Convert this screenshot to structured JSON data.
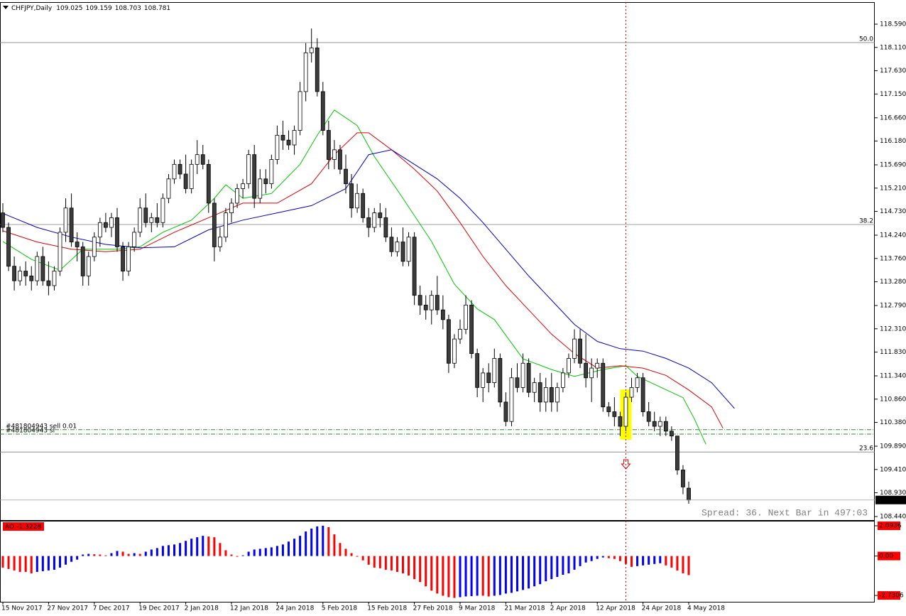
{
  "chart_data": {
    "type": "candlestick",
    "symbol": "CHFJPY,Daily",
    "categories": [
      "15 Nov 2017",
      null,
      null,
      null,
      null,
      null,
      null,
      null,
      "27 Nov 2017",
      null,
      null,
      null,
      null,
      null,
      null,
      null,
      "7 Dec 2017",
      null,
      null,
      null,
      null,
      null,
      null,
      null,
      "19 Dec 2017",
      null,
      null,
      null,
      null,
      null,
      null,
      null,
      "2 Jan 2018",
      null,
      null,
      null,
      null,
      null,
      null,
      null,
      "12 Jan 2018",
      null,
      null,
      null,
      null,
      null,
      null,
      null,
      "24 Jan 2018",
      null,
      null,
      null,
      null,
      null,
      null,
      null,
      "5 Feb 2018",
      null,
      null,
      null,
      null,
      null,
      null,
      null,
      "15 Feb 2018",
      null,
      null,
      null,
      null,
      null,
      null,
      null,
      "27 Feb 2018",
      null,
      null,
      null,
      null,
      null,
      null,
      null,
      "9 Mar 2018",
      null,
      null,
      null,
      null,
      null,
      null,
      null,
      "21 Mar 2018",
      null,
      null,
      null,
      null,
      null,
      null,
      null,
      "2 Apr 2018",
      null,
      null,
      null,
      null,
      null,
      null,
      null,
      "12 Apr 2018",
      null,
      null,
      null,
      null,
      null,
      null,
      null,
      "24 Apr 2018",
      null,
      null,
      null,
      null,
      null,
      null,
      null,
      "4 May 2018"
    ],
    "candles": [
      [
        114.7,
        114.9,
        114.3,
        114.4
      ],
      [
        114.4,
        114.5,
        113.5,
        113.6
      ],
      [
        113.6,
        113.8,
        113.1,
        113.3
      ],
      [
        113.3,
        113.6,
        113.2,
        113.5
      ],
      [
        113.5,
        113.7,
        113.2,
        113.4
      ],
      [
        113.4,
        113.6,
        113.1,
        113.3
      ],
      [
        113.3,
        113.9,
        113.2,
        113.8
      ],
      [
        113.8,
        114.0,
        113.2,
        113.3
      ],
      [
        113.3,
        113.7,
        113.0,
        113.2
      ],
      [
        113.2,
        113.6,
        113.1,
        113.5
      ],
      [
        113.5,
        114.4,
        113.4,
        114.3
      ],
      [
        114.3,
        115.0,
        114.1,
        114.8
      ],
      [
        114.8,
        115.1,
        114.0,
        114.1
      ],
      [
        114.1,
        114.3,
        113.7,
        114.0
      ],
      [
        114.0,
        114.1,
        113.2,
        113.4
      ],
      [
        113.4,
        113.9,
        113.2,
        113.8
      ],
      [
        113.8,
        114.3,
        113.7,
        114.2
      ],
      [
        114.2,
        114.6,
        114.0,
        114.5
      ],
      [
        114.5,
        114.7,
        114.3,
        114.4
      ],
      [
        114.4,
        114.7,
        114.2,
        114.6
      ],
      [
        114.6,
        114.8,
        113.9,
        114.0
      ],
      [
        114.0,
        114.1,
        113.3,
        113.5
      ],
      [
        113.5,
        114.1,
        113.4,
        114.0
      ],
      [
        114.0,
        114.4,
        113.9,
        114.3
      ],
      [
        114.3,
        115.0,
        114.2,
        114.8
      ],
      [
        114.8,
        115.1,
        114.4,
        114.5
      ],
      [
        114.5,
        114.7,
        114.3,
        114.6
      ],
      [
        114.6,
        114.9,
        114.4,
        114.5
      ],
      [
        114.5,
        115.1,
        114.4,
        115.0
      ],
      [
        115.0,
        115.5,
        114.9,
        115.4
      ],
      [
        115.4,
        115.8,
        115.3,
        115.7
      ],
      [
        115.7,
        115.8,
        115.4,
        115.5
      ],
      [
        115.5,
        115.9,
        115.1,
        115.2
      ],
      [
        115.2,
        115.8,
        115.1,
        115.7
      ],
      [
        115.7,
        116.2,
        115.5,
        115.9
      ],
      [
        115.9,
        116.1,
        115.6,
        115.7
      ],
      [
        115.7,
        115.8,
        114.7,
        114.9
      ],
      [
        114.9,
        115.0,
        113.7,
        114.0
      ],
      [
        114.0,
        114.4,
        113.9,
        114.2
      ],
      [
        114.2,
        114.8,
        114.1,
        114.7
      ],
      [
        114.7,
        115.0,
        114.5,
        114.9
      ],
      [
        114.9,
        115.3,
        114.8,
        115.2
      ],
      [
        115.2,
        115.4,
        115.0,
        115.3
      ],
      [
        115.3,
        116.0,
        115.2,
        115.9
      ],
      [
        115.9,
        116.1,
        114.8,
        115.0
      ],
      [
        115.0,
        115.6,
        114.9,
        115.4
      ],
      [
        115.4,
        115.6,
        115.1,
        115.3
      ],
      [
        115.3,
        115.9,
        115.2,
        115.8
      ],
      [
        115.8,
        116.5,
        115.7,
        116.3
      ],
      [
        116.3,
        116.6,
        116.0,
        116.2
      ],
      [
        116.2,
        116.4,
        116.0,
        116.1
      ],
      [
        116.1,
        116.5,
        115.9,
        116.4
      ],
      [
        116.4,
        117.4,
        116.3,
        117.2
      ],
      [
        117.2,
        118.2,
        117.0,
        118.0
      ],
      [
        118.0,
        118.5,
        117.8,
        118.1
      ],
      [
        118.1,
        118.3,
        117.1,
        117.2
      ],
      [
        117.2,
        117.4,
        116.3,
        116.4
      ],
      [
        116.4,
        116.6,
        115.6,
        115.8
      ],
      [
        115.8,
        116.2,
        115.6,
        116.0
      ],
      [
        116.0,
        116.1,
        115.5,
        115.6
      ],
      [
        115.6,
        115.9,
        115.1,
        115.3
      ],
      [
        115.3,
        115.5,
        114.6,
        114.8
      ],
      [
        114.8,
        115.3,
        114.7,
        115.1
      ],
      [
        115.1,
        115.2,
        114.5,
        114.6
      ],
      [
        114.6,
        114.8,
        114.2,
        114.4
      ],
      [
        114.4,
        114.8,
        114.3,
        114.7
      ],
      [
        114.7,
        114.9,
        114.4,
        114.6
      ],
      [
        114.6,
        114.8,
        114.1,
        114.2
      ],
      [
        114.2,
        114.4,
        113.8,
        113.9
      ],
      [
        113.9,
        114.2,
        113.8,
        114.1
      ],
      [
        114.1,
        114.4,
        113.6,
        113.7
      ],
      [
        113.7,
        114.3,
        113.6,
        114.2
      ],
      [
        114.2,
        114.3,
        112.8,
        113.0
      ],
      [
        113.0,
        113.2,
        112.6,
        112.8
      ],
      [
        112.8,
        113.0,
        112.5,
        112.7
      ],
      [
        112.7,
        113.1,
        112.4,
        113.0
      ],
      [
        113.0,
        113.4,
        112.6,
        112.7
      ],
      [
        112.7,
        113.0,
        112.3,
        112.5
      ],
      [
        112.5,
        112.6,
        111.4,
        111.6
      ],
      [
        111.6,
        112.2,
        111.5,
        112.1
      ],
      [
        112.1,
        112.5,
        112.0,
        112.3
      ],
      [
        112.3,
        113.0,
        112.2,
        112.8
      ],
      [
        112.8,
        112.9,
        111.7,
        111.8
      ],
      [
        111.8,
        111.9,
        110.9,
        111.1
      ],
      [
        111.1,
        111.5,
        110.8,
        111.4
      ],
      [
        111.4,
        111.6,
        111.0,
        111.2
      ],
      [
        111.2,
        111.9,
        111.1,
        111.7
      ],
      [
        111.7,
        111.8,
        110.7,
        110.8
      ],
      [
        110.8,
        111.0,
        110.3,
        110.4
      ],
      [
        110.4,
        111.5,
        110.3,
        111.3
      ],
      [
        111.3,
        111.6,
        111.0,
        111.1
      ],
      [
        111.1,
        111.8,
        111.0,
        111.6
      ],
      [
        111.6,
        111.7,
        110.9,
        111.0
      ],
      [
        111.0,
        111.3,
        110.8,
        111.2
      ],
      [
        111.2,
        111.4,
        110.6,
        110.8
      ],
      [
        110.8,
        111.3,
        110.6,
        111.1
      ],
      [
        111.1,
        111.4,
        110.6,
        110.8
      ],
      [
        110.8,
        111.2,
        110.6,
        111.1
      ],
      [
        111.1,
        111.5,
        111.0,
        111.4
      ],
      [
        111.4,
        111.8,
        111.3,
        111.7
      ],
      [
        111.7,
        112.3,
        111.6,
        112.1
      ],
      [
        112.1,
        112.3,
        111.5,
        111.6
      ],
      [
        111.6,
        112.2,
        111.1,
        111.3
      ],
      [
        111.3,
        111.7,
        110.8,
        111.5
      ],
      [
        111.5,
        111.7,
        111.3,
        111.6
      ],
      [
        111.6,
        111.7,
        110.6,
        110.7
      ],
      [
        110.7,
        110.8,
        110.5,
        110.6
      ],
      [
        110.6,
        110.9,
        110.3,
        110.5
      ],
      [
        110.5,
        110.6,
        110.1,
        110.3
      ],
      [
        110.3,
        111.0,
        110.2,
        110.9
      ],
      [
        110.9,
        111.3,
        110.8,
        111.1
      ],
      [
        111.1,
        111.4,
        111.0,
        111.3
      ],
      [
        111.3,
        111.4,
        110.5,
        110.6
      ],
      [
        110.6,
        110.8,
        110.3,
        110.4
      ],
      [
        110.4,
        110.6,
        110.2,
        110.3
      ],
      [
        110.3,
        110.5,
        110.1,
        110.4
      ],
      [
        110.4,
        110.5,
        110.1,
        110.2
      ],
      [
        110.2,
        110.3,
        110.0,
        110.1
      ],
      [
        110.1,
        110.1,
        109.3,
        109.4
      ],
      [
        109.4,
        109.5,
        108.9,
        109.05
      ],
      [
        109.025,
        109.159,
        108.703,
        108.781
      ]
    ],
    "up_color": "#ffffff",
    "down_color": "#3c3c3c",
    "outline_color": "#000000",
    "ylim": [
      108.367,
      119.044
    ],
    "yticks": [
      {
        "value": 118.59,
        "label": "118.590"
      },
      {
        "value": 118.11,
        "label": "118.110"
      },
      {
        "value": 117.63,
        "label": "117.630"
      },
      {
        "value": 117.15,
        "label": "117.150"
      },
      {
        "value": 116.66,
        "label": "116.660"
      },
      {
        "value": 116.18,
        "label": "116.180"
      },
      {
        "value": 115.69,
        "label": "115.690"
      },
      {
        "value": 115.21,
        "label": "115.210"
      },
      {
        "value": 114.73,
        "label": "114.730"
      },
      {
        "value": 114.24,
        "label": "114.240"
      },
      {
        "value": 113.76,
        "label": "113.760"
      },
      {
        "value": 113.28,
        "label": "113.280"
      },
      {
        "value": 112.79,
        "label": "112.790"
      },
      {
        "value": 112.31,
        "label": "112.310"
      },
      {
        "value": 111.83,
        "label": "111.830"
      },
      {
        "value": 111.34,
        "label": "111.340"
      },
      {
        "value": 110.86,
        "label": "110.860"
      },
      {
        "value": 110.38,
        "label": "110.380"
      },
      {
        "value": 109.89,
        "label": "109.890"
      },
      {
        "value": 109.41,
        "label": "109.410"
      },
      {
        "value": 108.93,
        "label": "108.930"
      },
      {
        "value": 108.44,
        "label": "108.440"
      }
    ],
    "moving_averages": [
      {
        "color": "#00c800",
        "x": [
          0,
          5,
          10,
          14,
          20,
          24,
          28,
          33,
          37,
          39,
          42,
          47,
          52,
          55,
          58,
          62,
          65,
          70,
          75,
          79,
          83,
          86,
          91,
          96,
          100,
          105,
          109,
          111,
          115,
          119,
          121,
          123
        ],
        "values": [
          114.11,
          113.74,
          113.52,
          113.95,
          113.95,
          114.0,
          114.3,
          114.55,
          115.0,
          115.28,
          115.0,
          115.1,
          115.7,
          116.3,
          116.82,
          116.5,
          115.86,
          115.0,
          114.11,
          113.23,
          112.72,
          112.5,
          111.69,
          111.47,
          111.33,
          111.47,
          111.55,
          111.33,
          111.11,
          110.89,
          110.45,
          109.93
        ]
      },
      {
        "color": "#e00000",
        "x": [
          0,
          6,
          12,
          18,
          24,
          30,
          36,
          42,
          48,
          54,
          58,
          62,
          64,
          68,
          72,
          76,
          80,
          84,
          88,
          92,
          96,
          100,
          104,
          108,
          112,
          116,
          120,
          124,
          126
        ],
        "values": [
          114.33,
          114.1,
          113.95,
          113.9,
          113.95,
          114.3,
          114.6,
          114.9,
          114.9,
          115.3,
          115.9,
          116.35,
          116.35,
          116.0,
          115.6,
          115.15,
          114.5,
          113.8,
          113.2,
          112.7,
          112.2,
          111.8,
          111.5,
          111.55,
          111.5,
          111.35,
          111.05,
          110.7,
          110.26
        ]
      },
      {
        "color": "#0000c8",
        "x": [
          0,
          6,
          12,
          18,
          24,
          30,
          36,
          42,
          48,
          54,
          60,
          64,
          68,
          72,
          76,
          80,
          84,
          88,
          92,
          96,
          100,
          104,
          108,
          112,
          116,
          120,
          124,
          128
        ],
        "values": [
          114.69,
          114.4,
          114.2,
          114.05,
          113.98,
          114.0,
          114.35,
          114.55,
          114.7,
          114.85,
          115.2,
          115.9,
          116.0,
          115.7,
          115.4,
          115.0,
          114.5,
          113.95,
          113.4,
          112.9,
          112.4,
          112.05,
          111.9,
          111.85,
          111.7,
          111.5,
          111.2,
          110.67
        ]
      }
    ],
    "levels": [
      {
        "label": "50.0",
        "price": 118.21
      },
      {
        "label": "38.2",
        "price": 114.46
      },
      {
        "label": "23.6",
        "price": 109.77
      }
    ],
    "orders": [
      {
        "label": "#481804943 sell 0.01",
        "price": 110.23
      },
      {
        "label": "#481804943 sl",
        "price": 110.14
      }
    ],
    "signal_bar": 109,
    "spread_text": "Spread: 36. Next Bar in 497:03",
    "oscillator": {
      "type": "histogram",
      "label": "AO",
      "up_color": "#0000ff",
      "down_color": "#ff0000",
      "ylim": [
        -3.17,
        2.44
      ],
      "yticks": [
        2.0936,
        {
          "value": 0,
          "label": "0.00"
        },
        -2.7306
      ],
      "values": [
        -0.8,
        -0.9,
        -1.0,
        -1.1,
        -1.1,
        -1.2,
        -1.1,
        -1.05,
        -1.0,
        -0.95,
        -0.8,
        -0.6,
        -0.4,
        -0.25,
        0.1,
        0.15,
        0.12,
        0.1,
        0.05,
        0.2,
        0.35,
        0.3,
        0.15,
        0.2,
        0.15,
        0.3,
        0.45,
        0.55,
        0.7,
        0.75,
        0.8,
        0.9,
        1.05,
        1.2,
        1.3,
        1.4,
        1.35,
        1.3,
        0.9,
        0.4,
        0.1,
        -0.05,
        0.05,
        0.3,
        0.45,
        0.5,
        0.55,
        0.6,
        0.7,
        0.8,
        1.0,
        1.2,
        1.4,
        1.7,
        1.9,
        2.05,
        2.1,
        2.0,
        1.5,
        0.9,
        0.5,
        0.2,
        -0.05,
        -0.3,
        -0.6,
        -0.8,
        -0.85,
        -0.95,
        -1.0,
        -1.1,
        -1.2,
        -1.35,
        -1.6,
        -1.8,
        -2.1,
        -2.4,
        -2.6,
        -2.75,
        -2.85,
        -2.9,
        -2.85,
        -2.8,
        -2.78,
        -2.75,
        -2.75,
        -2.8,
        -2.75,
        -2.7,
        -2.6,
        -2.55,
        -2.45,
        -2.35,
        -2.25,
        -2.1,
        -1.95,
        -1.75,
        -1.6,
        -1.45,
        -1.3,
        -1.2,
        -0.95,
        -0.7,
        -0.45,
        -0.35,
        -0.2,
        -0.1,
        -0.15,
        -0.2,
        -0.35,
        -0.55,
        -0.75,
        -0.7,
        -0.65,
        -0.6,
        -0.55,
        -0.5,
        -0.65,
        -0.8,
        -1.0,
        -1.2,
        -1.3228
      ]
    }
  }
}
